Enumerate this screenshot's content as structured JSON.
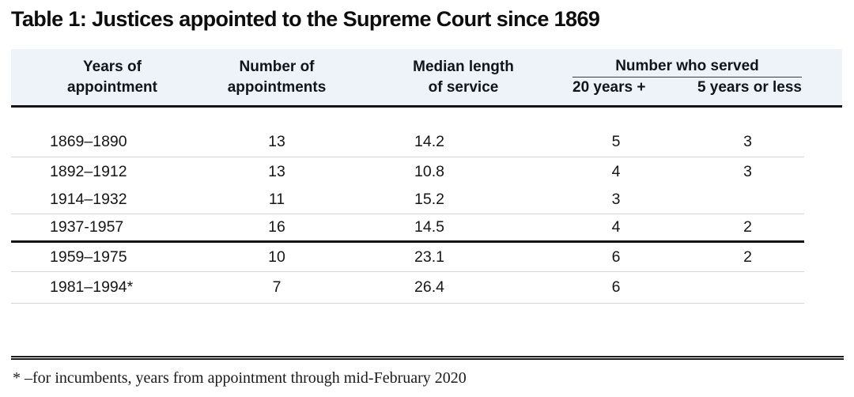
{
  "title": "Table 1: Justices appointed to the Supreme Court since 1869",
  "table": {
    "columns": {
      "years": {
        "line1": "Years of",
        "line2": "appointment"
      },
      "appointments": {
        "line1": "Number of",
        "line2": "appointments"
      },
      "median": {
        "line1": "Median length",
        "line2": "of service"
      },
      "served_group": "Number who served",
      "served_20": "20 years +",
      "served_5": "5 years or less"
    },
    "rows": [
      {
        "years": "1869–1890",
        "appointments": "13",
        "median": "14.2",
        "served20": "5",
        "served5": "3"
      },
      {
        "years": "1892–1912",
        "appointments": "13",
        "median": "10.8",
        "served20": "4",
        "served5": "3"
      },
      {
        "years": "1914–1932",
        "appointments": "11",
        "median": "15.2",
        "served20": "3",
        "served5": ""
      },
      {
        "years": "1937-1957",
        "appointments": "16",
        "median": "14.5",
        "served20": "4",
        "served5": "2"
      },
      {
        "years": "1959–1975",
        "appointments": "10",
        "median": "23.1",
        "served20": "6",
        "served5": "2"
      },
      {
        "years": "1981–1994*",
        "appointments": "7",
        "median": "26.4",
        "served20": "6",
        "served5": ""
      }
    ]
  },
  "footnote": "* –for incumbents, years from appointment through mid-February 2020",
  "colors": {
    "header_band": "#edf3f9",
    "thin_rule": "#d4d4d4",
    "thick_rule": "#141414",
    "text": "#161616"
  },
  "chart_data": {
    "type": "table",
    "title": "Table 1: Justices appointed to the Supreme Court since 1869",
    "columns": [
      "Years of appointment",
      "Number of appointments",
      "Median length of service",
      "Number who served: 20 years +",
      "Number who served: 5 years or less"
    ],
    "rows": [
      [
        "1869–1890",
        13,
        14.2,
        5,
        3
      ],
      [
        "1892–1912",
        13,
        10.8,
        4,
        3
      ],
      [
        "1914–1932",
        11,
        15.2,
        3,
        null
      ],
      [
        "1937-1957",
        16,
        14.5,
        4,
        2
      ],
      [
        "1959–1975",
        10,
        23.1,
        6,
        2
      ],
      [
        "1981–1994*",
        7,
        26.4,
        6,
        null
      ]
    ],
    "footnote": "* –for incumbents, years from appointment through mid-February 2020"
  }
}
